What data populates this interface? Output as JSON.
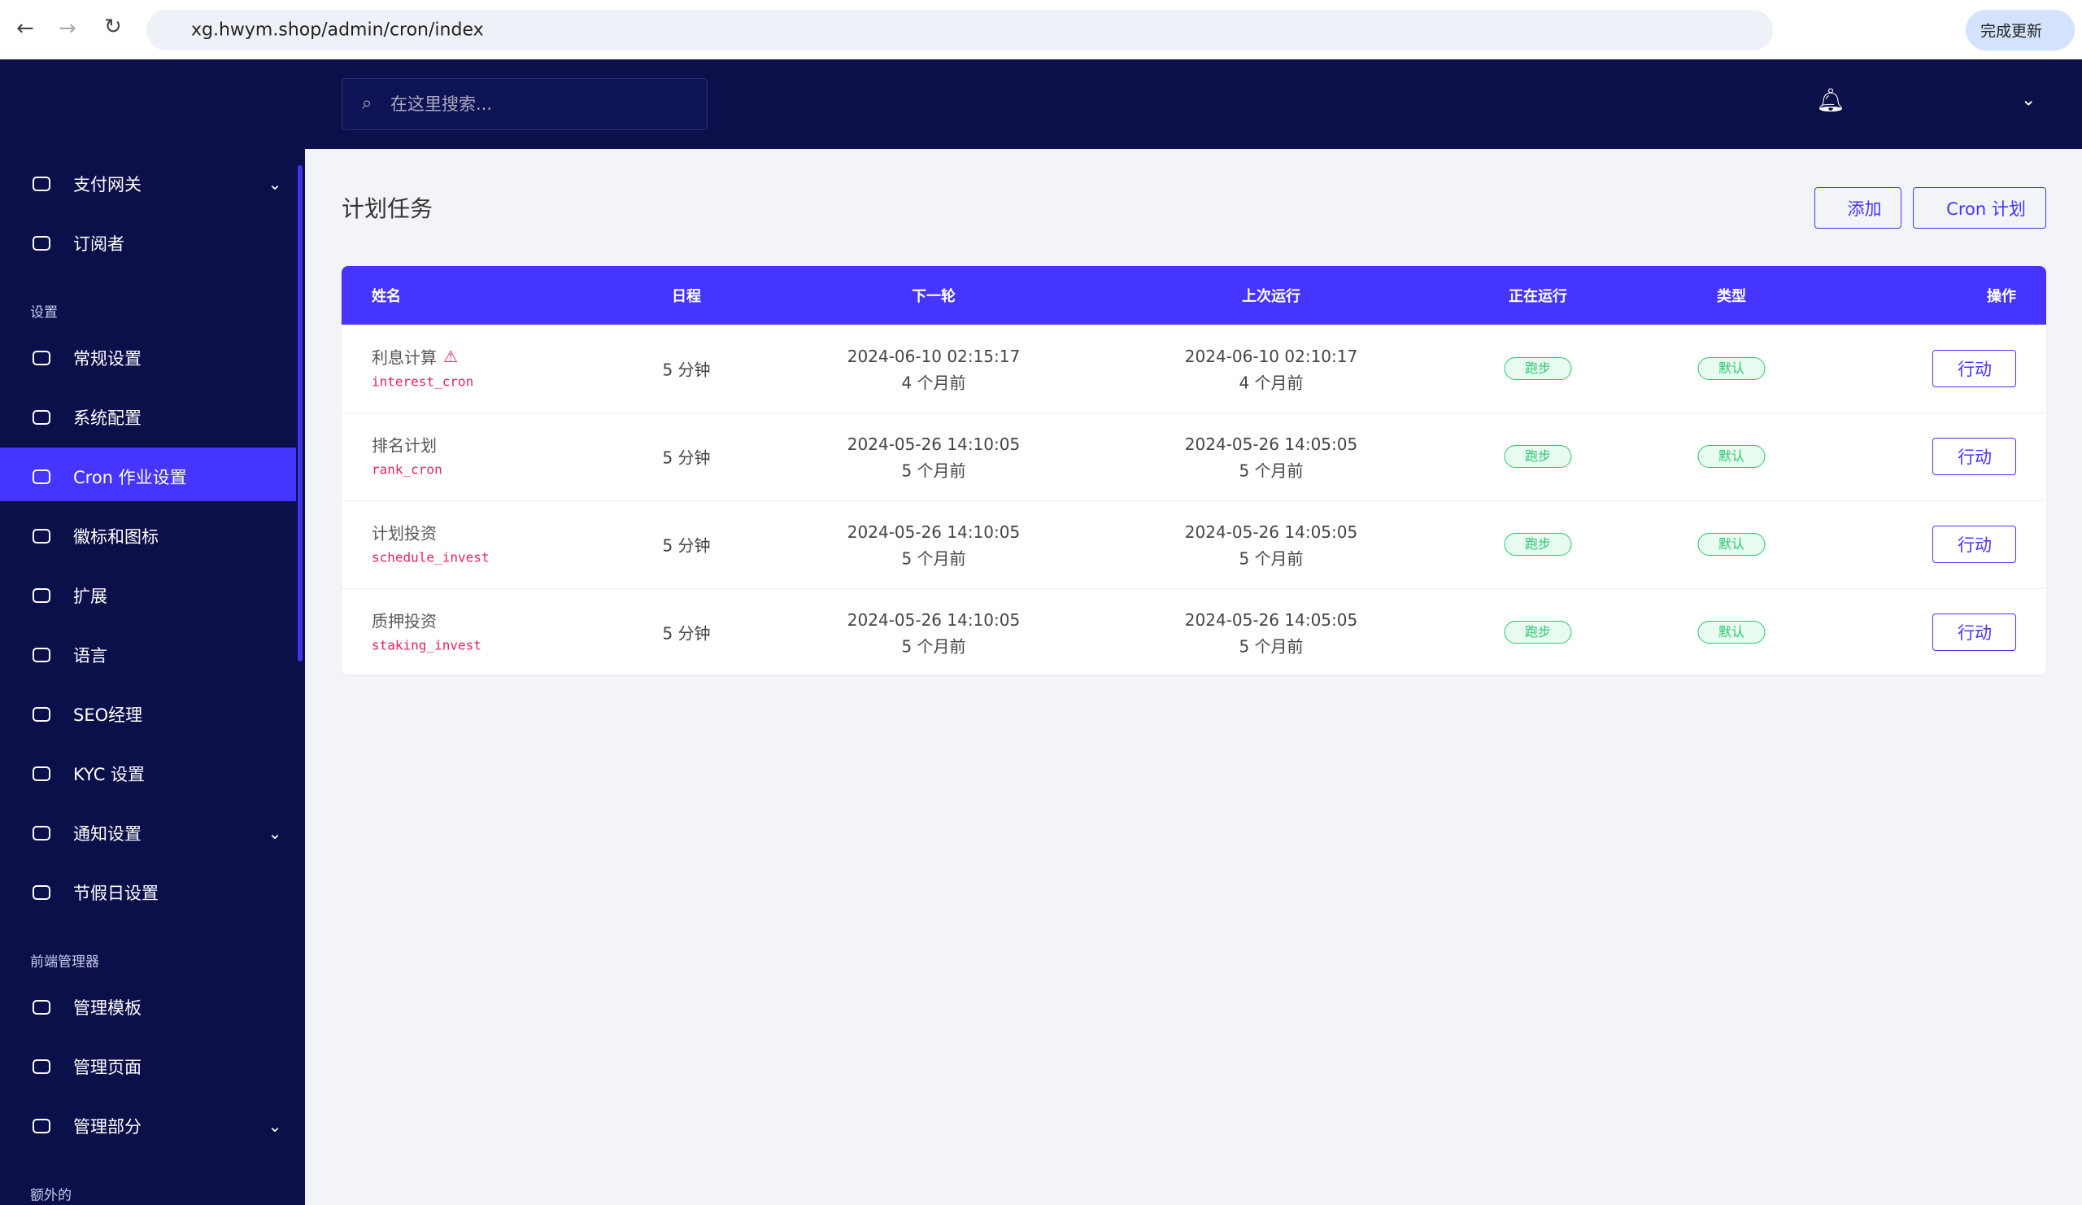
{
  "browser": {
    "url": "xg.hwym.shop/admin/cron/index",
    "update_button": "完成更新"
  },
  "header": {
    "search_placeholder": "在这里搜索..."
  },
  "sidebar": [
    {
      "label": "支付网关",
      "dropdown": true
    },
    {
      "label": "订阅者"
    },
    {
      "section": "设置"
    },
    {
      "label": "常规设置"
    },
    {
      "label": "系统配置"
    },
    {
      "label": "Cron 作业设置",
      "active": true
    },
    {
      "label": "徽标和图标"
    },
    {
      "label": "扩展"
    },
    {
      "label": "语言"
    },
    {
      "label": "SEO经理"
    },
    {
      "label": "KYC 设置"
    },
    {
      "label": "通知设置",
      "dropdown": true
    },
    {
      "label": "节假日设置"
    },
    {
      "section": "前端管理器"
    },
    {
      "label": "管理模板"
    },
    {
      "label": "管理页面"
    },
    {
      "label": "管理部分",
      "dropdown": true
    },
    {
      "section": "额外的"
    }
  ],
  "page": {
    "title": "计划任务",
    "buttons": [
      "添加",
      "Cron 计划"
    ]
  },
  "table": {
    "columns": [
      "姓名",
      "日程",
      "下一轮",
      "上次运行",
      "正在运行",
      "类型",
      "操作"
    ],
    "rows": [
      {
        "name": "利息计算",
        "code": "interest_cron",
        "warning": true,
        "schedule": "5 分钟",
        "next_run": "2024-06-10 02:15:17",
        "next_run_ago": "4 个月前",
        "last_run": "2024-06-10 02:10:17",
        "last_run_ago": "4 个月前",
        "running": "跑步",
        "type": "默认",
        "action": "行动"
      },
      {
        "name": "排名计划",
        "code": "rank_cron",
        "schedule": "5 分钟",
        "next_run": "2024-05-26 14:10:05",
        "next_run_ago": "5 个月前",
        "last_run": "2024-05-26 14:05:05",
        "last_run_ago": "5 个月前",
        "running": "跑步",
        "type": "默认",
        "action": "行动"
      },
      {
        "name": "计划投资",
        "code": "schedule_invest",
        "schedule": "5 分钟",
        "next_run": "2024-05-26 14:10:05",
        "next_run_ago": "5 个月前",
        "last_run": "2024-05-26 14:05:05",
        "last_run_ago": "5 个月前",
        "running": "跑步",
        "type": "默认",
        "action": "行动"
      },
      {
        "name": "质押投资",
        "code": "staking_invest",
        "schedule": "5 分钟",
        "next_run": "2024-05-26 14:10:05",
        "next_run_ago": "5 个月前",
        "last_run": "2024-05-26 14:05:05",
        "last_run_ago": "5 个月前",
        "running": "跑步",
        "type": "默认",
        "action": "行动"
      }
    ]
  }
}
